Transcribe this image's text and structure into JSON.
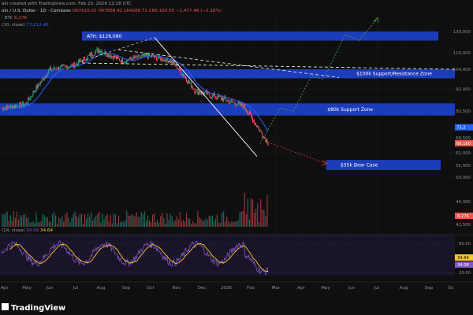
{
  "header": {
    "line1": "aki created with TradingView.com, Feb 23, 2026 12:28 UTC",
    "line2_name": "oin / U.S. Dollar · 1D · Coinbase",
    "line2_ohlc": "O67616.01  H67858.42  L64286.71  C66,160.50  −1,477.48 (−2.18%)",
    "line3": "· BTC  ",
    "line3_vol": "6.27K",
    "line4": "(30, close)  ",
    "line4_val": "73,212.46"
  },
  "colors": {
    "background": "#0f0f10",
    "zone": "#1e40c8",
    "zone_text": "#ffffff",
    "bull_candle": "#26a69a",
    "bear_candle": "#ef5350",
    "ma": "#2962ff",
    "rsi": "#7e57c2",
    "rsi_ma": "#f7c531",
    "bull_path": "#4caf50",
    "bear_path": "#e53935",
    "trendline": "#ffffff",
    "chip_ma": "#2962ff",
    "chip_price": "#ef5350",
    "chip_rsi_ma": "#f7c531",
    "chip_rsi": "#7e57c2"
  },
  "chart_data": {
    "type": "candlestick",
    "symbol": "Bitcoin / U.S. Dollar · 1D · Coinbase",
    "x_ticks": [
      "Apr",
      "May",
      "Jun",
      "Jul",
      "Aug",
      "Sep",
      "Oct",
      "Nov",
      "Dec",
      "2026",
      "Feb",
      "Mar",
      "Apr",
      "May",
      "Jun",
      "Jul",
      "Aug",
      "Sep",
      "Oc"
    ],
    "y_ticks": [
      "130,000",
      "116,000",
      "104,000",
      "92,000",
      "80,500",
      "68,500",
      "62,000",
      "55,000",
      "50,000",
      "44,000",
      "41,500"
    ],
    "price_chips": [
      "73,2",
      "66,160"
    ],
    "price_series_monthly": [
      {
        "month": "Apr 2025",
        "close": 84000
      },
      {
        "month": "May 2025",
        "close": 104000
      },
      {
        "month": "Jun 2025",
        "close": 107000
      },
      {
        "month": "Jul 2025",
        "close": 118000
      },
      {
        "month": "Aug 2025",
        "close": 110000
      },
      {
        "month": "Sep 2025",
        "close": 114000
      },
      {
        "month": "Oct 2025",
        "close": 110000
      },
      {
        "month": "Nov 2025",
        "close": 91000
      },
      {
        "month": "Dec 2025",
        "close": 87500
      },
      {
        "month": "Jan 2026",
        "close": 83000
      },
      {
        "month": "Feb 2026",
        "close": 66160
      }
    ],
    "zones": [
      {
        "label": "ATH: $126,080",
        "from": 124000,
        "to": 130000
      },
      {
        "label": "$100k Support/Resistance Zone",
        "from": 98500,
        "to": 104000
      },
      {
        "label": "$80k Support Zone",
        "from": 78500,
        "to": 84500
      },
      {
        "label": "$55k Bear Case",
        "from": 53000,
        "to": 58000
      }
    ],
    "rsi": {
      "label": "(14, close)",
      "value": "34.08",
      "ma_value": "34.64",
      "ticks": [
        "60.00",
        "40.00",
        "20.00"
      ],
      "chips": [
        "34.64",
        "34.08"
      ]
    },
    "volume_chip": "6.27K"
  },
  "footer": {
    "brand": "TradingView"
  }
}
